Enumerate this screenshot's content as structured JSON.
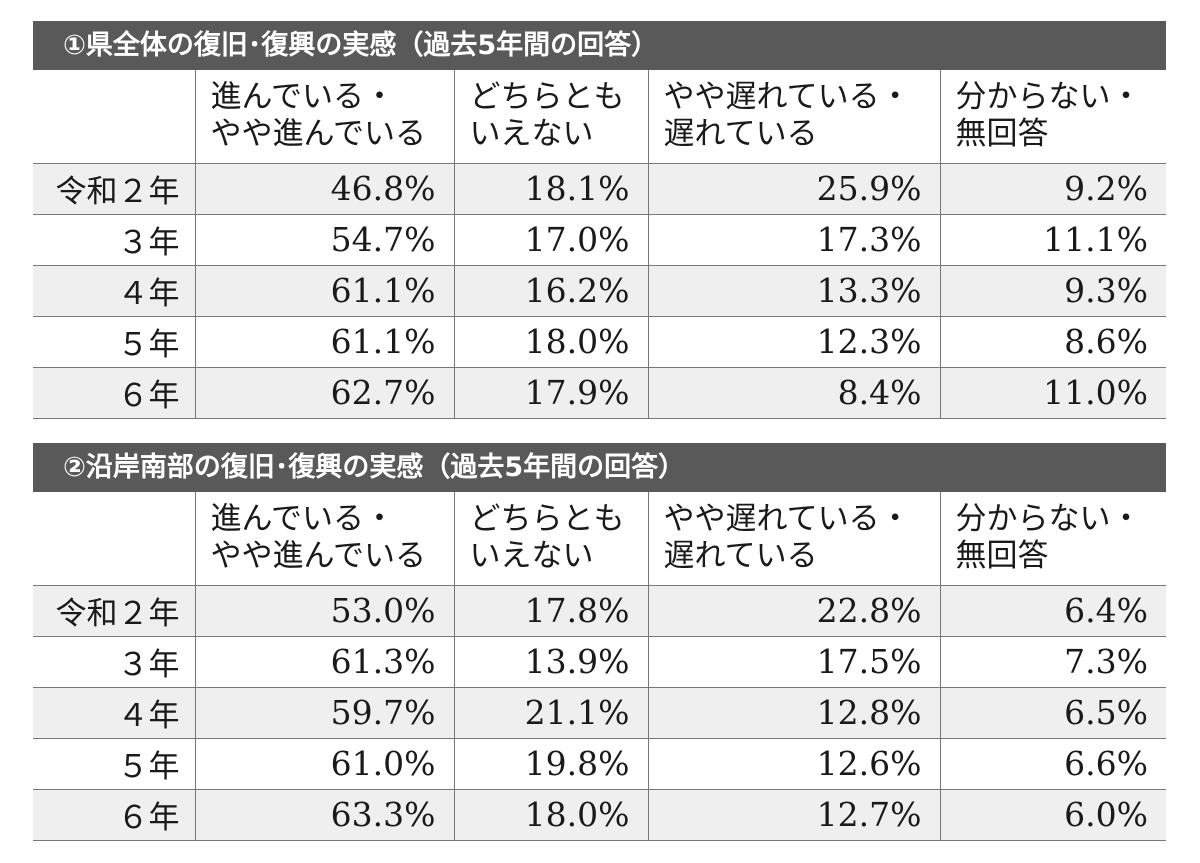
{
  "chart_data": [
    {
      "type": "table",
      "title": "①県全体の復旧･復興の実感（過去5年間の回答）",
      "columns": [
        "",
        "進んでいる・\nやや進んでいる",
        "どちらとも\nいえない",
        "やや遅れている・\n遅れている",
        "分からない・\n無回答"
      ],
      "rows": [
        {
          "label": "令和２年",
          "values": [
            "46.8%",
            "18.1%",
            "25.9%",
            "9.2%"
          ]
        },
        {
          "label": "３年",
          "values": [
            "54.7%",
            "17.0%",
            "17.3%",
            "11.1%"
          ]
        },
        {
          "label": "４年",
          "values": [
            "61.1%",
            "16.2%",
            "13.3%",
            "9.3%"
          ]
        },
        {
          "label": "５年",
          "values": [
            "61.1%",
            "18.0%",
            "12.3%",
            "8.6%"
          ]
        },
        {
          "label": "６年",
          "values": [
            "62.7%",
            "17.9%",
            "8.4%",
            "11.0%"
          ]
        }
      ]
    },
    {
      "type": "table",
      "title": "②沿岸南部の復旧･復興の実感（過去5年間の回答）",
      "columns": [
        "",
        "進んでいる・\nやや進んでいる",
        "どちらとも\nいえない",
        "やや遅れている・\n遅れている",
        "分からない・\n無回答"
      ],
      "rows": [
        {
          "label": "令和２年",
          "values": [
            "53.0%",
            "17.8%",
            "22.8%",
            "6.4%"
          ]
        },
        {
          "label": "３年",
          "values": [
            "61.3%",
            "13.9%",
            "17.5%",
            "7.3%"
          ]
        },
        {
          "label": "４年",
          "values": [
            "59.7%",
            "21.1%",
            "12.8%",
            "6.5%"
          ]
        },
        {
          "label": "５年",
          "values": [
            "61.0%",
            "19.8%",
            "12.6%",
            "6.6%"
          ]
        },
        {
          "label": "６年",
          "values": [
            "63.3%",
            "18.0%",
            "12.7%",
            "6.0%"
          ]
        }
      ]
    }
  ],
  "colors": {
    "title_bar": "#595959",
    "title_text": "#ffffff",
    "row_shade": "#efefef",
    "rule": "#777777"
  }
}
